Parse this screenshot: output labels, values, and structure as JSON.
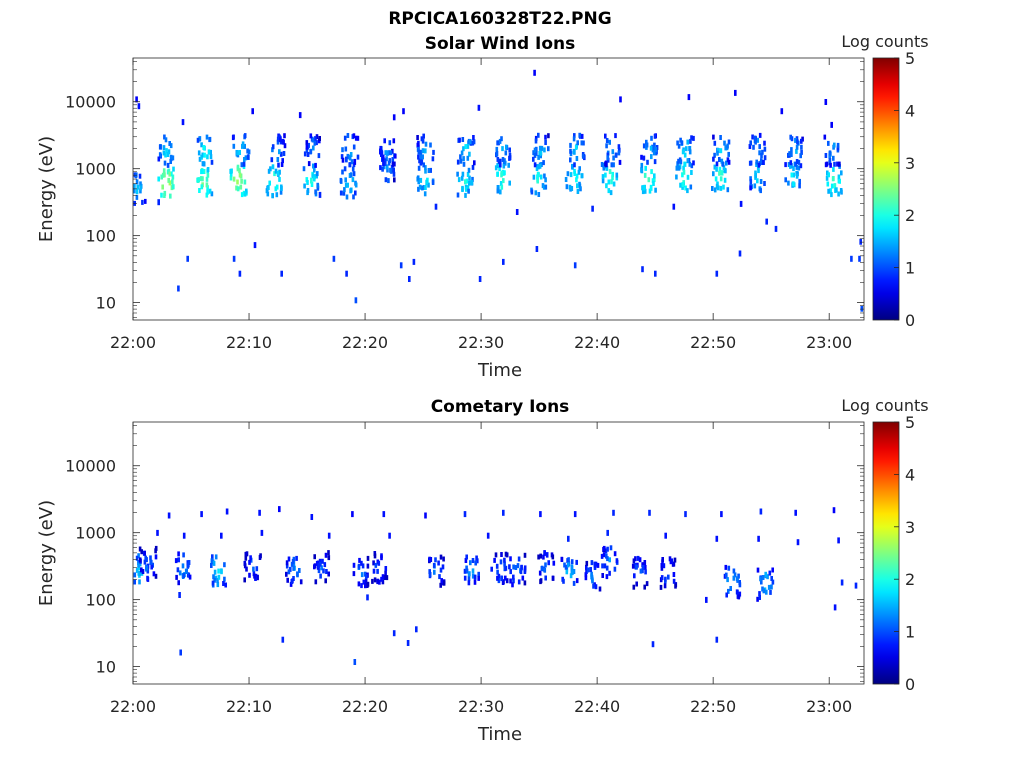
{
  "figure": {
    "title": "RPCICA160328T22.PNG"
  },
  "panels": [
    {
      "id": "solar",
      "title": "Solar Wind Ions",
      "xlabel": "Time",
      "ylabel": "Energy (eV)",
      "colorbar_label": "Log counts"
    },
    {
      "id": "cometary",
      "title": "Cometary Ions",
      "xlabel": "Time",
      "ylabel": "Energy (eV)",
      "colorbar_label": "Log counts"
    }
  ],
  "chart_data": [
    {
      "type": "heatmap",
      "title": "Solar Wind Ions",
      "xlabel": "Time",
      "ylabel": "Energy (eV)",
      "x_unit": "minutes after 22:00",
      "xlim": [
        0,
        63
      ],
      "xticks": [
        0,
        10,
        20,
        30,
        40,
        50,
        60
      ],
      "xtick_labels": [
        "22:00",
        "22:10",
        "22:20",
        "22:30",
        "22:40",
        "22:50",
        "23:00"
      ],
      "yscale": "log",
      "ylim": [
        5.5,
        45000
      ],
      "yticks": [
        10,
        100,
        1000,
        10000
      ],
      "ytick_labels": [
        "10",
        "100",
        "1000",
        "10000"
      ],
      "colorbar": {
        "label": "Log counts",
        "range": [
          0,
          5
        ],
        "ticks": [
          0,
          1,
          2,
          3,
          4,
          5
        ],
        "colormap": "jet"
      },
      "bursts": [
        {
          "t": 0.3,
          "e": 550,
          "c": 1.6
        },
        {
          "t": 2.8,
          "e": 650,
          "c": 2.8
        },
        {
          "t": 2.8,
          "e": 2050,
          "c": 1.8
        },
        {
          "t": 6.0,
          "e": 700,
          "c": 2.5
        },
        {
          "t": 6.1,
          "e": 2050,
          "c": 2.0
        },
        {
          "t": 9.0,
          "e": 750,
          "c": 2.7
        },
        {
          "t": 9.2,
          "e": 2050,
          "c": 1.8
        },
        {
          "t": 12.0,
          "e": 700,
          "c": 2.2
        },
        {
          "t": 12.3,
          "e": 2050,
          "c": 1.5
        },
        {
          "t": 15.2,
          "e": 750,
          "c": 2.1
        },
        {
          "t": 15.4,
          "e": 2050,
          "c": 1.4
        },
        {
          "t": 18.5,
          "e": 650,
          "c": 1.8
        },
        {
          "t": 18.6,
          "e": 2050,
          "c": 1.6
        },
        {
          "t": 21.8,
          "e": 1200,
          "c": 1.5
        },
        {
          "t": 21.9,
          "e": 2050,
          "c": 1.5
        },
        {
          "t": 25.1,
          "e": 750,
          "c": 1.9
        },
        {
          "t": 25.1,
          "e": 2050,
          "c": 1.6
        },
        {
          "t": 28.5,
          "e": 700,
          "c": 2.0
        },
        {
          "t": 28.6,
          "e": 2050,
          "c": 1.8
        },
        {
          "t": 31.7,
          "e": 800,
          "c": 2.2
        },
        {
          "t": 31.8,
          "e": 2050,
          "c": 1.6
        },
        {
          "t": 34.8,
          "e": 750,
          "c": 2.0
        },
        {
          "t": 35.0,
          "e": 2050,
          "c": 1.6
        },
        {
          "t": 37.9,
          "e": 800,
          "c": 2.1
        },
        {
          "t": 38.1,
          "e": 2050,
          "c": 1.7
        },
        {
          "t": 41.0,
          "e": 800,
          "c": 2.2
        },
        {
          "t": 41.2,
          "e": 2050,
          "c": 1.6
        },
        {
          "t": 44.3,
          "e": 750,
          "c": 2.4
        },
        {
          "t": 44.4,
          "e": 2050,
          "c": 1.6
        },
        {
          "t": 47.4,
          "e": 800,
          "c": 2.2
        },
        {
          "t": 47.5,
          "e": 2050,
          "c": 1.8
        },
        {
          "t": 50.5,
          "e": 850,
          "c": 2.2
        },
        {
          "t": 50.6,
          "e": 2050,
          "c": 1.7
        },
        {
          "t": 53.7,
          "e": 850,
          "c": 1.8
        },
        {
          "t": 53.7,
          "e": 2050,
          "c": 1.6
        },
        {
          "t": 56.8,
          "e": 850,
          "c": 1.9
        },
        {
          "t": 56.9,
          "e": 2050,
          "c": 1.6
        },
        {
          "t": 60.3,
          "e": 750,
          "c": 2.3
        },
        {
          "t": 60.2,
          "e": 2050,
          "c": 1.5
        }
      ],
      "scatter": [
        {
          "t": 0.2,
          "e": 12000,
          "c": 0.6
        },
        {
          "t": 0.4,
          "e": 9500,
          "c": 0.7
        },
        {
          "t": 2.1,
          "e": 350,
          "c": 0.8
        },
        {
          "t": 3.8,
          "e": 18,
          "c": 0.9
        },
        {
          "t": 4.2,
          "e": 5500,
          "c": 0.7
        },
        {
          "t": 4.6,
          "e": 50,
          "c": 0.9
        },
        {
          "t": 8.6,
          "e": 50,
          "c": 0.9
        },
        {
          "t": 9.1,
          "e": 30,
          "c": 0.8
        },
        {
          "t": 10.2,
          "e": 8000,
          "c": 0.6
        },
        {
          "t": 10.4,
          "e": 80,
          "c": 0.7
        },
        {
          "t": 12.7,
          "e": 30,
          "c": 0.8
        },
        {
          "t": 14.3,
          "e": 7000,
          "c": 0.6
        },
        {
          "t": 17.2,
          "e": 50,
          "c": 0.9
        },
        {
          "t": 18.3,
          "e": 30,
          "c": 0.8
        },
        {
          "t": 19.1,
          "e": 12,
          "c": 1.0
        },
        {
          "t": 19.0,
          "e": 1400,
          "c": 0.6
        },
        {
          "t": 21.2,
          "e": 2000,
          "c": 0.7
        },
        {
          "t": 22.4,
          "e": 6500,
          "c": 0.6
        },
        {
          "t": 23.0,
          "e": 40,
          "c": 0.9
        },
        {
          "t": 23.7,
          "e": 25,
          "c": 0.8
        },
        {
          "t": 24.1,
          "e": 45,
          "c": 0.8
        },
        {
          "t": 23.2,
          "e": 8000,
          "c": 0.6
        },
        {
          "t": 29.7,
          "e": 9000,
          "c": 0.7
        },
        {
          "t": 29.8,
          "e": 25,
          "c": 0.8
        },
        {
          "t": 31.8,
          "e": 45,
          "c": 0.8
        },
        {
          "t": 34.5,
          "e": 30000,
          "c": 0.6
        },
        {
          "t": 34.7,
          "e": 70,
          "c": 0.8
        },
        {
          "t": 38.0,
          "e": 40,
          "c": 0.9
        },
        {
          "t": 41.9,
          "e": 12000,
          "c": 0.6
        },
        {
          "t": 43.8,
          "e": 35,
          "c": 0.8
        },
        {
          "t": 44.9,
          "e": 30,
          "c": 0.8
        },
        {
          "t": 47.8,
          "e": 13000,
          "c": 0.6
        },
        {
          "t": 50.2,
          "e": 30,
          "c": 0.8
        },
        {
          "t": 51.8,
          "e": 15000,
          "c": 0.6
        },
        {
          "t": 52.2,
          "e": 60,
          "c": 0.8
        },
        {
          "t": 55.8,
          "e": 8000,
          "c": 0.6
        },
        {
          "t": 59.6,
          "e": 11000,
          "c": 0.6
        },
        {
          "t": 61.8,
          "e": 50,
          "c": 0.9
        },
        {
          "t": 62.5,
          "e": 50,
          "c": 0.9
        },
        {
          "t": 62.6,
          "e": 90,
          "c": 0.8
        },
        {
          "t": 62.7,
          "e": 9,
          "c": 1.0
        },
        {
          "t": 60.1,
          "e": 5000,
          "c": 0.6
        },
        {
          "t": 16.0,
          "e": 450,
          "c": 0.8
        },
        {
          "t": 26.0,
          "e": 300,
          "c": 0.8
        },
        {
          "t": 33.0,
          "e": 250,
          "c": 0.7
        },
        {
          "t": 39.5,
          "e": 280,
          "c": 0.8
        },
        {
          "t": 46.5,
          "e": 300,
          "c": 0.7
        },
        {
          "t": 54.5,
          "e": 180,
          "c": 0.8
        },
        {
          "t": 55.3,
          "e": 140,
          "c": 0.8
        },
        {
          "t": 52.3,
          "e": 330,
          "c": 0.7
        }
      ]
    },
    {
      "type": "heatmap",
      "title": "Cometary Ions",
      "xlabel": "Time",
      "ylabel": "Energy (eV)",
      "x_unit": "minutes after 22:00",
      "xlim": [
        0,
        63
      ],
      "xticks": [
        0,
        10,
        20,
        30,
        40,
        50,
        60
      ],
      "xtick_labels": [
        "22:00",
        "22:10",
        "22:20",
        "22:30",
        "22:40",
        "22:50",
        "23:00"
      ],
      "yscale": "log",
      "ylim": [
        5.5,
        45000
      ],
      "yticks": [
        10,
        100,
        1000,
        10000
      ],
      "ytick_labels": [
        "10",
        "100",
        "1000",
        "10000"
      ],
      "colorbar": {
        "label": "Log counts",
        "range": [
          0,
          5
        ],
        "ticks": [
          0,
          1,
          2,
          3,
          4,
          5
        ],
        "colormap": "jet"
      },
      "bursts": [
        {
          "t": 0.5,
          "e": 300,
          "c": 1.7
        },
        {
          "t": 1.2,
          "e": 380,
          "c": 1.3
        },
        {
          "t": 4.2,
          "e": 320,
          "c": 1.5
        },
        {
          "t": 7.2,
          "e": 300,
          "c": 1.8
        },
        {
          "t": 10.2,
          "e": 350,
          "c": 1.2
        },
        {
          "t": 13.8,
          "e": 300,
          "c": 1.4
        },
        {
          "t": 16.2,
          "e": 330,
          "c": 1.2
        },
        {
          "t": 19.5,
          "e": 280,
          "c": 1.3
        },
        {
          "t": 21.2,
          "e": 330,
          "c": 1.2
        },
        {
          "t": 26.0,
          "e": 290,
          "c": 1.4
        },
        {
          "t": 29.0,
          "e": 300,
          "c": 1.5
        },
        {
          "t": 31.5,
          "e": 320,
          "c": 1.3
        },
        {
          "t": 33.0,
          "e": 300,
          "c": 1.4
        },
        {
          "t": 35.5,
          "e": 330,
          "c": 1.3
        },
        {
          "t": 37.5,
          "e": 280,
          "c": 1.6
        },
        {
          "t": 39.5,
          "e": 260,
          "c": 1.3
        },
        {
          "t": 41.0,
          "e": 400,
          "c": 1.4
        },
        {
          "t": 43.5,
          "e": 280,
          "c": 1.2
        },
        {
          "t": 46.0,
          "e": 270,
          "c": 1.3
        },
        {
          "t": 51.5,
          "e": 200,
          "c": 1.6
        },
        {
          "t": 54.4,
          "e": 180,
          "c": 1.7
        }
      ],
      "scatter": [
        {
          "t": 4.0,
          "e": 18,
          "c": 0.9
        },
        {
          "t": 12.8,
          "e": 28,
          "c": 0.8
        },
        {
          "t": 19.0,
          "e": 13,
          "c": 1.0
        },
        {
          "t": 22.4,
          "e": 35,
          "c": 0.8
        },
        {
          "t": 23.6,
          "e": 25,
          "c": 0.8
        },
        {
          "t": 24.3,
          "e": 40,
          "c": 0.8
        },
        {
          "t": 44.7,
          "e": 24,
          "c": 0.8
        },
        {
          "t": 50.2,
          "e": 28,
          "c": 0.8
        },
        {
          "t": 3.0,
          "e": 2000,
          "c": 0.7
        },
        {
          "t": 5.8,
          "e": 2100,
          "c": 0.7
        },
        {
          "t": 8.0,
          "e": 2300,
          "c": 0.7
        },
        {
          "t": 10.8,
          "e": 2200,
          "c": 0.7
        },
        {
          "t": 12.5,
          "e": 2500,
          "c": 0.6
        },
        {
          "t": 15.3,
          "e": 1900,
          "c": 0.7
        },
        {
          "t": 18.8,
          "e": 2100,
          "c": 0.6
        },
        {
          "t": 21.5,
          "e": 2100,
          "c": 0.7
        },
        {
          "t": 25.1,
          "e": 2000,
          "c": 0.6
        },
        {
          "t": 28.5,
          "e": 2100,
          "c": 0.8
        },
        {
          "t": 31.8,
          "e": 2200,
          "c": 0.8
        },
        {
          "t": 35.0,
          "e": 2100,
          "c": 0.7
        },
        {
          "t": 38.0,
          "e": 2100,
          "c": 0.7
        },
        {
          "t": 41.3,
          "e": 2200,
          "c": 0.8
        },
        {
          "t": 44.4,
          "e": 2200,
          "c": 0.8
        },
        {
          "t": 47.5,
          "e": 2100,
          "c": 0.8
        },
        {
          "t": 50.6,
          "e": 2100,
          "c": 0.7
        },
        {
          "t": 54.0,
          "e": 2300,
          "c": 0.8
        },
        {
          "t": 57.0,
          "e": 2200,
          "c": 0.7
        },
        {
          "t": 60.3,
          "e": 2400,
          "c": 0.6
        },
        {
          "t": 2.0,
          "e": 1100,
          "c": 0.7
        },
        {
          "t": 4.3,
          "e": 1000,
          "c": 0.7
        },
        {
          "t": 7.5,
          "e": 1000,
          "c": 0.7
        },
        {
          "t": 11.0,
          "e": 1100,
          "c": 0.7
        },
        {
          "t": 16.8,
          "e": 1000,
          "c": 0.7
        },
        {
          "t": 22.0,
          "e": 1000,
          "c": 0.7
        },
        {
          "t": 30.5,
          "e": 1000,
          "c": 0.7
        },
        {
          "t": 37.4,
          "e": 900,
          "c": 0.8
        },
        {
          "t": 40.8,
          "e": 1100,
          "c": 0.8
        },
        {
          "t": 45.8,
          "e": 1000,
          "c": 0.7
        },
        {
          "t": 50.2,
          "e": 900,
          "c": 0.7
        },
        {
          "t": 53.8,
          "e": 900,
          "c": 0.7
        },
        {
          "t": 57.2,
          "e": 800,
          "c": 0.7
        },
        {
          "t": 60.7,
          "e": 850,
          "c": 0.7
        },
        {
          "t": 61.0,
          "e": 200,
          "c": 0.8
        },
        {
          "t": 62.2,
          "e": 180,
          "c": 0.8
        },
        {
          "t": 60.4,
          "e": 85,
          "c": 0.7
        },
        {
          "t": 3.9,
          "e": 130,
          "c": 0.8
        },
        {
          "t": 20.1,
          "e": 120,
          "c": 0.8
        },
        {
          "t": 49.3,
          "e": 110,
          "c": 0.7
        }
      ]
    }
  ]
}
